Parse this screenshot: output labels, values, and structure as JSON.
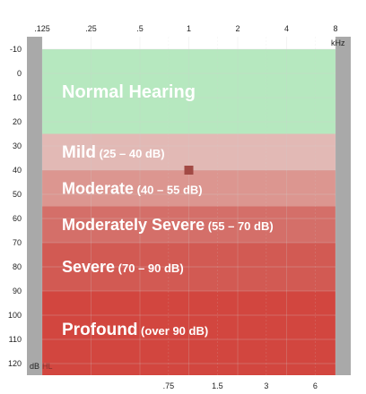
{
  "chart_data": {
    "type": "audiogram",
    "top_axis": {
      "ticks": [
        ".125",
        ".25",
        ".5",
        "1",
        "2",
        "4",
        "8"
      ],
      "values_khz": [
        0.125,
        0.25,
        0.5,
        1,
        2,
        4,
        8
      ],
      "unit": "kHz"
    },
    "bottom_axis": {
      "ticks": [
        ".75",
        "1.5",
        "3",
        "6"
      ],
      "values_khz": [
        0.75,
        1.5,
        3,
        6
      ]
    },
    "y_axis": {
      "ticks": [
        "-10",
        "0",
        "10",
        "20",
        "30",
        "40",
        "50",
        "60",
        "70",
        "80",
        "90",
        "100",
        "110",
        "120"
      ],
      "values": [
        -10,
        0,
        10,
        20,
        30,
        40,
        50,
        60,
        70,
        80,
        90,
        100,
        110,
        120
      ],
      "range": [
        -10,
        125
      ],
      "unit": "dB",
      "unit_suffix": "HL",
      "direction": "inverted"
    },
    "bands": [
      {
        "title": "Normal Hearing",
        "range_label": "",
        "from_db": -10,
        "to_db": 25,
        "color": "#b6e8bf"
      },
      {
        "title": "Mild",
        "range_label": "(25 – 40 dB)",
        "from_db": 25,
        "to_db": 40,
        "color": "#e2b9b5"
      },
      {
        "title": "Moderate",
        "range_label": "(40 – 55 dB)",
        "from_db": 40,
        "to_db": 55,
        "color": "#dc9690"
      },
      {
        "title": "Moderately Severe",
        "range_label": "(55 – 70 dB)",
        "from_db": 55,
        "to_db": 70,
        "color": "#d46f69"
      },
      {
        "title": "Severe",
        "range_label": "(70 – 90 dB)",
        "from_db": 70,
        "to_db": 90,
        "color": "#d25a53"
      },
      {
        "title": "Profound",
        "range_label": "(over 90 dB)",
        "from_db": 90,
        "to_db": 125,
        "color": "#d2463f"
      }
    ],
    "marker": {
      "freq_khz": 1,
      "db": 40,
      "color": "#a24a45"
    },
    "colors": {
      "side_rail": "#a9a9a9",
      "grid": "#cfcfcf",
      "text": "#222222"
    }
  }
}
